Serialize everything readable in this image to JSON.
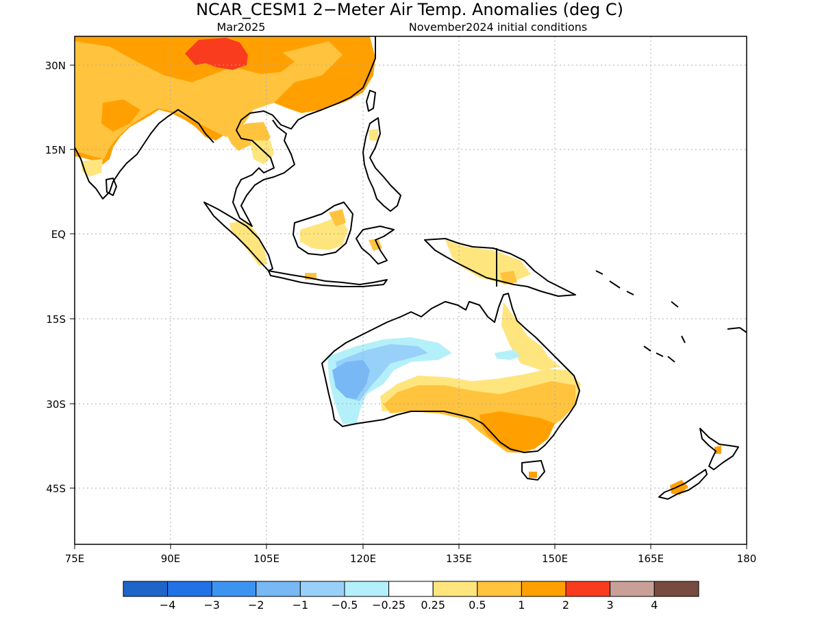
{
  "title": "NCAR_CESM1 2−Meter Air Temp. Anomalies (deg C)",
  "subtitle_left": "Mar2025",
  "subtitle_right": "November2024 initial conditions",
  "lat_labels": [
    "30N",
    "15N",
    "EQ",
    "15S",
    "30S",
    "45S"
  ],
  "lon_labels": [
    "75E",
    "90E",
    "105E",
    "120E",
    "135E",
    "150E",
    "165E",
    "180"
  ],
  "colorbar": {
    "labels": [
      "−4",
      "−3",
      "−2",
      "−1",
      "−0.5",
      "−0.25",
      "0.25",
      "0.5",
      "1",
      "2",
      "3",
      "4"
    ],
    "colors": [
      "#1f64c8",
      "#2272e6",
      "#3d94f0",
      "#78b8f5",
      "#97d0f9",
      "#b4f0fa",
      "#ffffff",
      "#ffe57d",
      "#ffc33e",
      "#ffa000",
      "#fa3c1e",
      "#c8a097",
      "#784b41"
    ]
  },
  "colors": {
    "warm_light": "#ffe57d",
    "warm": "#ffc33e",
    "warm_strong": "#ffa000",
    "hot": "#fa3c1e",
    "cool_light": "#b4f0fa",
    "cool": "#97d0f9",
    "cool_strong": "#78b8f5"
  }
}
